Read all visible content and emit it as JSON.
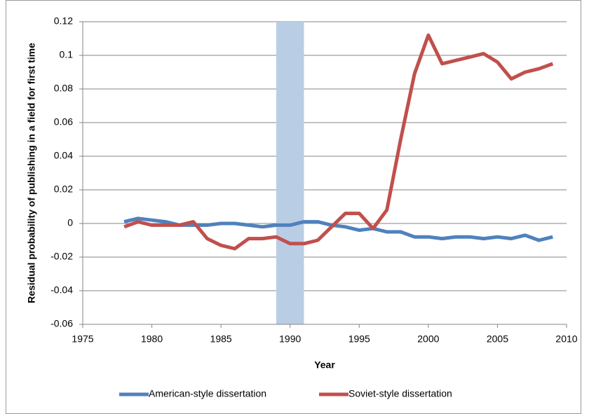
{
  "chart_data": {
    "type": "line",
    "x_label": "Year",
    "y_label": "Residual probability of publishing in a field for first time",
    "x": [
      1978,
      1979,
      1980,
      1981,
      1982,
      1983,
      1984,
      1985,
      1986,
      1987,
      1988,
      1989,
      1990,
      1991,
      1992,
      1993,
      1994,
      1995,
      1996,
      1997,
      1998,
      1999,
      2000,
      2001,
      2002,
      2003,
      2004,
      2005,
      2006,
      2007,
      2008,
      2009
    ],
    "series": [
      {
        "name": "American-style dissertation",
        "color": "#4f81bd",
        "values": [
          0.001,
          0.003,
          0.002,
          0.001,
          -0.001,
          -0.001,
          -0.001,
          0,
          0,
          -0.001,
          -0.002,
          -0.001,
          -0.001,
          0.001,
          0.001,
          -0.001,
          -0.002,
          -0.004,
          -0.003,
          -0.005,
          -0.005,
          -0.008,
          -0.008,
          -0.009,
          -0.008,
          -0.008,
          -0.009,
          -0.008,
          -0.009,
          -0.007,
          -0.01,
          -0.008
        ]
      },
      {
        "name": "Soviet-style dissertation",
        "color": "#c0504d",
        "values": [
          -0.002,
          0.001,
          -0.001,
          -0.001,
          -0.001,
          0.001,
          -0.009,
          -0.013,
          -0.015,
          -0.009,
          -0.009,
          -0.008,
          -0.012,
          -0.012,
          -0.01,
          -0.002,
          0.006,
          0.006,
          -0.003,
          0.008,
          0.05,
          0.089,
          0.112,
          0.095,
          0.097,
          0.099,
          0.101,
          0.096,
          0.086,
          0.09,
          0.092,
          0.095
        ]
      }
    ],
    "highlight_x": [
      1989,
      1991
    ],
    "highlight_color": "#b9cde5",
    "xlim": [
      1975,
      2010
    ],
    "xticks": [
      1975,
      1980,
      1985,
      1990,
      1995,
      2000,
      2005,
      2010
    ],
    "ylim": [
      -0.06,
      0.12
    ],
    "yticks": [
      -0.06,
      -0.04,
      -0.02,
      0,
      0.02,
      0.04,
      0.06,
      0.08,
      0.1,
      0.12
    ],
    "grid": true,
    "legend": "bottom"
  }
}
